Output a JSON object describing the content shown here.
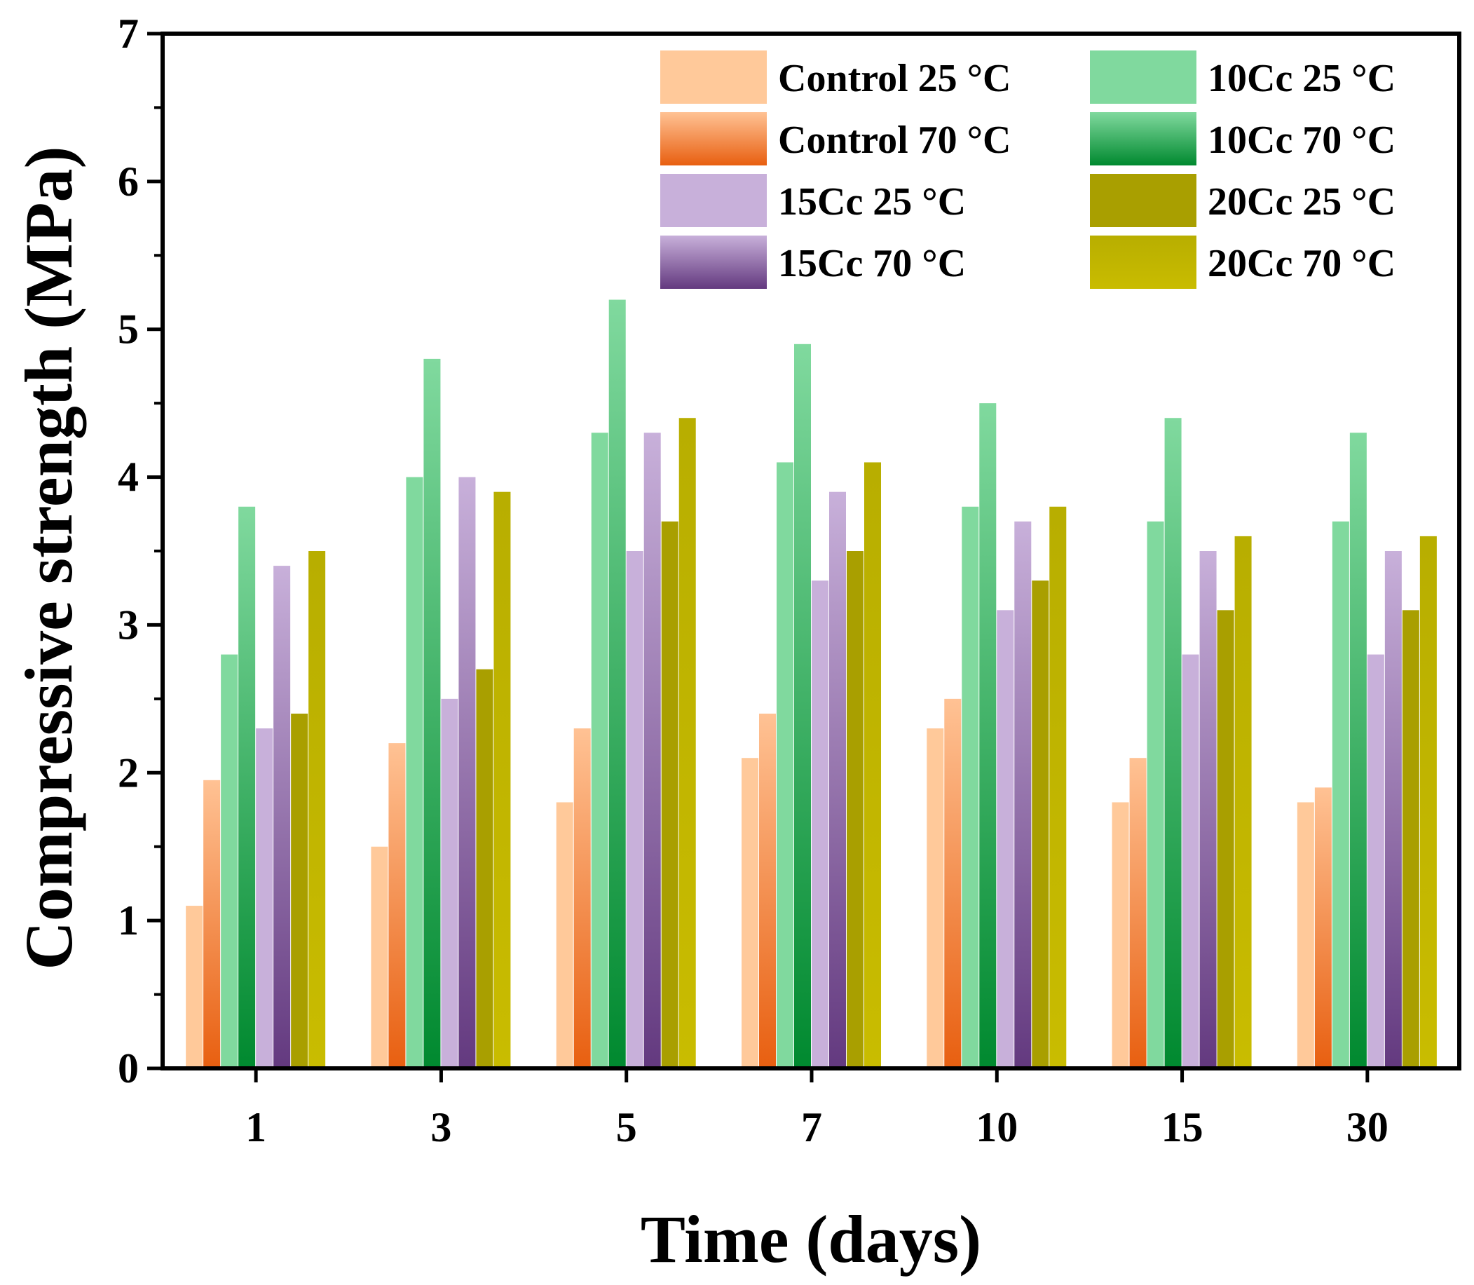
{
  "chart_data": {
    "type": "bar",
    "xlabel": "Time (days)",
    "ylabel": "Compressive strength (MPa)",
    "ylim": [
      0,
      7
    ],
    "yticks": [
      0,
      1,
      2,
      3,
      4,
      5,
      6,
      7
    ],
    "categories": [
      "1",
      "3",
      "5",
      "7",
      "10",
      "15",
      "30"
    ],
    "series": [
      {
        "name": "Control 25 °C",
        "values": [
          1.1,
          1.5,
          1.8,
          2.1,
          2.3,
          1.8,
          1.8
        ],
        "color_top": "#FFC99A",
        "color_bottom": "#FFC99A"
      },
      {
        "name": "Control 70 °C",
        "values": [
          1.95,
          2.2,
          2.3,
          2.4,
          2.5,
          2.1,
          1.9
        ],
        "color_top": "#FFC294",
        "color_bottom": "#E85F10"
      },
      {
        "name": "10Cc 25 °C",
        "values": [
          2.8,
          4.0,
          4.3,
          4.1,
          3.8,
          3.7,
          3.7
        ],
        "color_top": "#80D99E",
        "color_bottom": "#80D99E"
      },
      {
        "name": "10Cc 70 °C",
        "values": [
          3.8,
          4.8,
          5.2,
          4.9,
          4.5,
          4.4,
          4.3
        ],
        "color_top": "#80D99E",
        "color_bottom": "#00892F"
      },
      {
        "name": "15Cc 25 °C",
        "values": [
          2.3,
          2.5,
          3.5,
          3.3,
          3.1,
          2.8,
          2.8
        ],
        "color_top": "#C8B0DA",
        "color_bottom": "#C8B0DA"
      },
      {
        "name": "15Cc 70 °C",
        "values": [
          3.4,
          4.0,
          4.3,
          3.9,
          3.7,
          3.5,
          3.5
        ],
        "color_top": "#C8B0DA",
        "color_bottom": "#63397F"
      },
      {
        "name": "20Cc 25 °C",
        "values": [
          2.4,
          2.7,
          3.7,
          3.5,
          3.3,
          3.1,
          3.1
        ],
        "color_top": "#A99F00",
        "color_bottom": "#A99F00"
      },
      {
        "name": "20Cc 70 °C",
        "values": [
          3.5,
          3.9,
          4.4,
          4.1,
          3.8,
          3.6,
          3.6
        ],
        "color_top": "#B8AE00",
        "color_bottom": "#C9BC00"
      }
    ],
    "legend": {
      "position": "top-right",
      "columns": [
        [
          "Control 25 °C",
          "Control 70 °C",
          "15Cc 25 °C",
          "15Cc 70 °C"
        ],
        [
          "10Cc 25 °C",
          "10Cc 70 °C",
          "20Cc 25 °C",
          "20Cc 70 °C"
        ]
      ]
    },
    "grid": false
  }
}
